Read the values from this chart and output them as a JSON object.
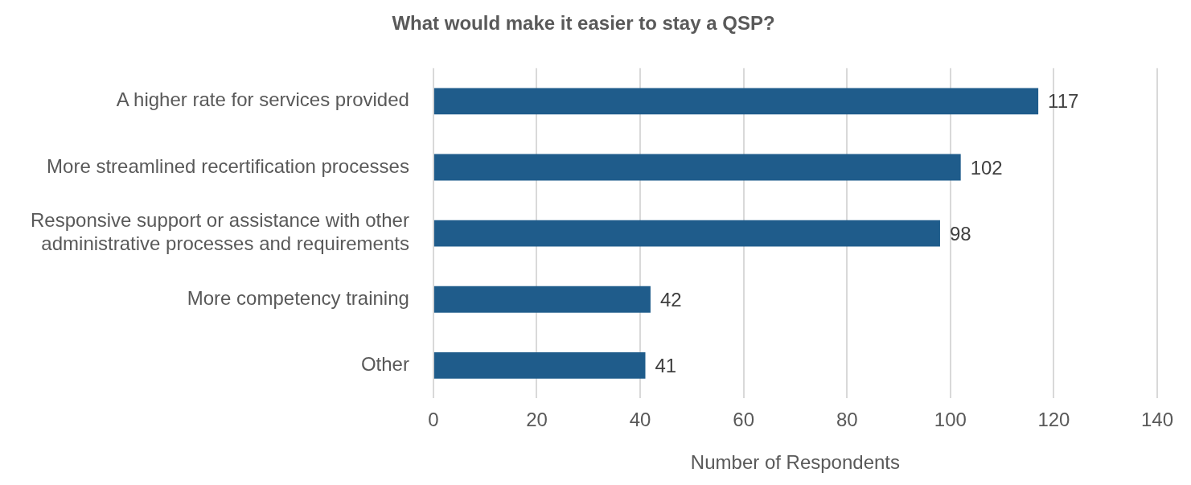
{
  "chart_data": {
    "type": "bar",
    "orientation": "horizontal",
    "title": "What would make it easier to stay a QSP?",
    "xlabel": "Number of Respondents",
    "categories": [
      "A higher rate for services provided",
      "More streamlined recertification processes",
      "Responsive support or assistance with other administrative processes and requirements",
      "More competency training",
      "Other"
    ],
    "values": [
      117,
      102,
      98,
      42,
      41
    ],
    "color": "#1f5c8b",
    "data_labels": true,
    "xlim": [
      0,
      140
    ],
    "xticks": [
      0,
      20,
      40,
      60,
      80,
      100,
      120,
      140
    ],
    "grid": "x",
    "legend": false
  }
}
